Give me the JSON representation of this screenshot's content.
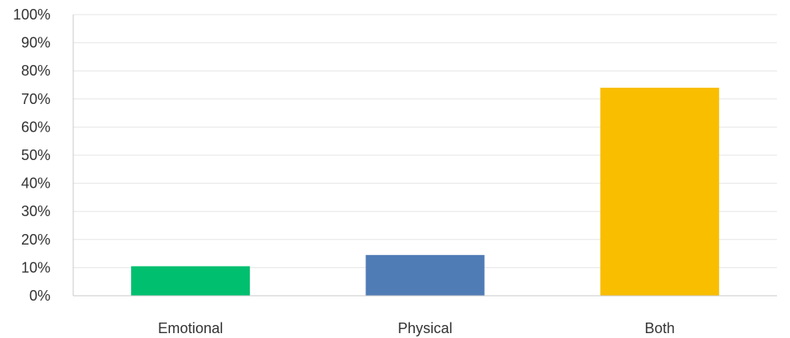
{
  "chart_data": {
    "type": "bar",
    "title": "",
    "xlabel": "",
    "ylabel": "",
    "categories": [
      "Emotional",
      "Physical",
      "Both"
    ],
    "values": [
      10.5,
      14.5,
      74
    ],
    "colors": [
      "#00bf6f",
      "#507cb6",
      "#f9be00"
    ],
    "ylim": [
      0,
      100
    ],
    "y_ticks": [
      0,
      10,
      20,
      30,
      40,
      50,
      60,
      70,
      80,
      90,
      100
    ],
    "y_tick_labels": [
      "0%",
      "10%",
      "20%",
      "30%",
      "40%",
      "50%",
      "60%",
      "70%",
      "80%",
      "90%",
      "100%"
    ],
    "grid": true,
    "legend": "none"
  }
}
